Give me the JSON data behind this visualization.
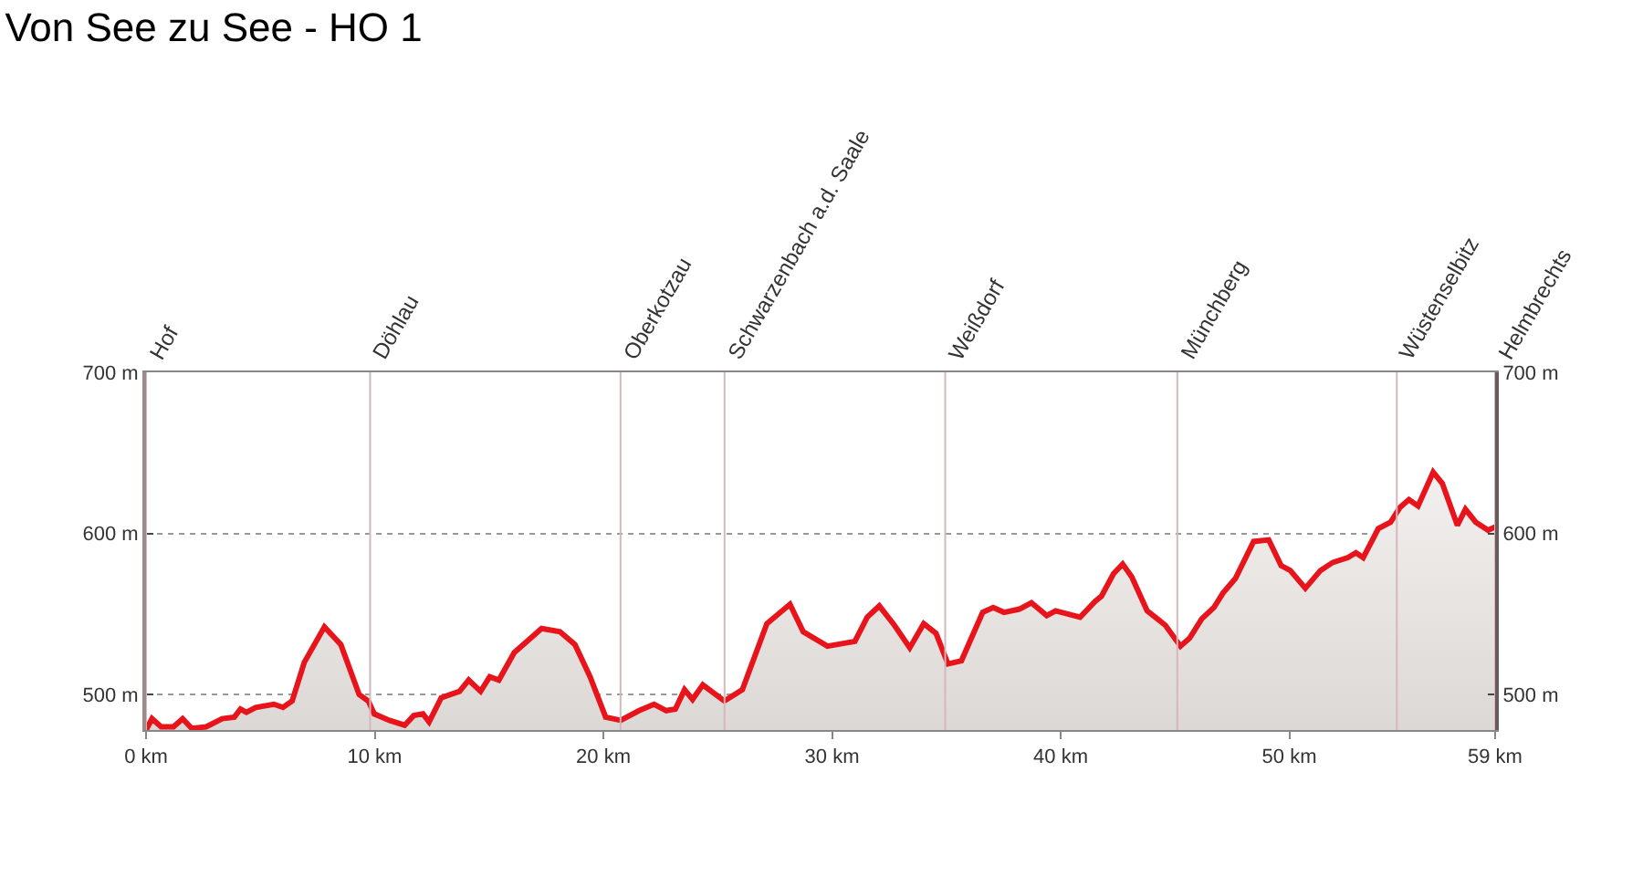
{
  "chart_data": {
    "type": "area",
    "title": "Von See zu See - HO 1",
    "series": [
      {
        "color": "#e8141c",
        "x": [
          0,
          0.26,
          0.66,
          1.2,
          1.6,
          2.0,
          2.63,
          3.33,
          3.86,
          4.13,
          4.39,
          4.79,
          5.59,
          5.99,
          6.39,
          6.92,
          7.8,
          8.52,
          9.32,
          9.72,
          9.98,
          10.64,
          11.31,
          11.71,
          12.11,
          12.38,
          12.91,
          13.71,
          14.11,
          14.63,
          15.03,
          15.43,
          16.1,
          17.3,
          18.1,
          18.76,
          19.42,
          20.1,
          20.76,
          21.56,
          22.22,
          22.75,
          23.15,
          23.55,
          23.9,
          24.35,
          25.29,
          26.08,
          27.15,
          28.16,
          28.74,
          29.8,
          31.0,
          31.54,
          32.07,
          32.73,
          33.4,
          34.01,
          34.55,
          35.07,
          35.66,
          36.59,
          37.05,
          37.52,
          38.19,
          38.72,
          39.39,
          39.78,
          40.85,
          41.52,
          41.78,
          42.31,
          42.71,
          43.11,
          43.78,
          44.58,
          45.24,
          45.64,
          46.17,
          46.7,
          47.1,
          47.64,
          48.44,
          49.1,
          49.64,
          50.04,
          50.7,
          51.36,
          51.9,
          52.56,
          52.91,
          53.23,
          53.89,
          54.43,
          54.83,
          55.23,
          55.63,
          56.29,
          56.69,
          57.35,
          57.7,
          58.15,
          58.69,
          59
        ],
        "values": [
          478,
          485,
          480,
          480,
          485,
          479,
          480,
          485,
          486,
          491,
          489,
          492,
          494,
          492,
          496,
          520,
          542,
          531,
          500,
          496,
          488,
          484,
          481,
          487,
          488,
          483,
          498,
          502,
          509,
          502,
          511,
          509,
          526,
          541,
          539,
          531,
          511,
          486,
          484,
          490,
          494,
          490,
          491,
          503,
          497,
          506,
          496,
          503,
          544,
          556,
          539,
          530,
          533,
          548,
          555,
          543,
          529,
          544,
          538,
          519,
          521,
          551,
          554,
          551,
          553,
          557,
          549,
          552,
          548,
          558,
          561,
          575,
          581,
          573,
          552,
          543,
          530,
          535,
          547,
          554,
          563,
          572,
          595,
          596,
          580,
          577,
          566,
          577,
          582,
          585,
          588,
          585,
          603,
          607,
          616,
          621,
          617,
          638,
          631,
          605,
          615,
          607,
          602,
          604
        ]
      }
    ],
    "xlim": [
      0,
      59
    ],
    "xticks": [
      {
        "value": 0,
        "label": "0 km"
      },
      {
        "value": 10,
        "label": "10 km"
      },
      {
        "value": 20,
        "label": "20 km"
      },
      {
        "value": 30,
        "label": "30 km"
      },
      {
        "value": 40,
        "label": "40 km"
      },
      {
        "value": 50,
        "label": "50 km"
      },
      {
        "value": 59,
        "label": "59 km"
      }
    ],
    "ylim": [
      478,
      700
    ],
    "yticks": [
      {
        "value": 500,
        "label": "500 m"
      },
      {
        "value": 600,
        "label": "600 m"
      },
      {
        "value": 700,
        "label": "700 m"
      }
    ],
    "y2lim": [
      478,
      700
    ],
    "y2ticks": [
      {
        "value": 500,
        "label": "500 m"
      },
      {
        "value": 600,
        "label": "600 m"
      },
      {
        "value": 700,
        "label": "700 m"
      }
    ],
    "grid": "y",
    "legend": false,
    "ref_lines": [
      {
        "axis": "x",
        "value": 0,
        "label": "Hof"
      },
      {
        "axis": "x",
        "value": 9.8,
        "label": "Döhlau"
      },
      {
        "axis": "x",
        "value": 20.75,
        "label": "Oberkotzau"
      },
      {
        "axis": "x",
        "value": 25.3,
        "label": "Schwarzenbach a.d. Saale"
      },
      {
        "axis": "x",
        "value": 34.95,
        "label": "Weißdorf"
      },
      {
        "axis": "x",
        "value": 45.1,
        "label": "Münchberg"
      },
      {
        "axis": "x",
        "value": 54.7,
        "label": "Wüstenselbitz"
      },
      {
        "axis": "x",
        "value": 59,
        "label": "Helmbrechts"
      }
    ]
  }
}
